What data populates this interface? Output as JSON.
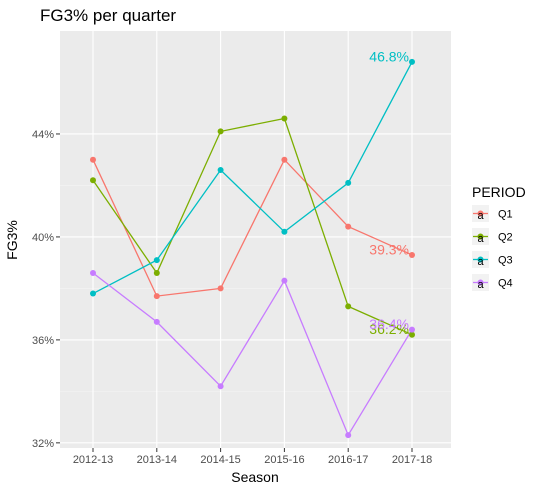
{
  "chart_data": {
    "type": "line",
    "title": "FG3% per quarter",
    "xlabel": "Season",
    "ylabel": "FG3%",
    "categories": [
      "2012-13",
      "2013-14",
      "2014-15",
      "2015-16",
      "2016-17",
      "2017-18"
    ],
    "ylim": [
      31.8,
      48.0
    ],
    "yticks": [
      32,
      36,
      40,
      44
    ],
    "ytick_labels": [
      "32%",
      "36%",
      "40%",
      "44%"
    ],
    "grid": true,
    "legend": {
      "title": "PERIOD",
      "position": "right",
      "glyph": "a"
    },
    "series": [
      {
        "name": "Q1",
        "color": "#F8766D",
        "values": [
          43.0,
          37.7,
          38.0,
          43.0,
          40.4,
          39.3
        ],
        "end_label": "39.3%"
      },
      {
        "name": "Q2",
        "color": "#7CAE00",
        "values": [
          42.2,
          38.6,
          44.1,
          44.6,
          37.3,
          36.2
        ],
        "end_label": "36.2%"
      },
      {
        "name": "Q3",
        "color": "#00BFC4",
        "values": [
          37.8,
          39.1,
          42.6,
          40.2,
          42.1,
          46.8
        ],
        "end_label": "46.8%"
      },
      {
        "name": "Q4",
        "color": "#C77CFF",
        "values": [
          38.6,
          36.7,
          34.2,
          38.3,
          32.3,
          36.4
        ],
        "end_label": "36.4%"
      }
    ]
  }
}
